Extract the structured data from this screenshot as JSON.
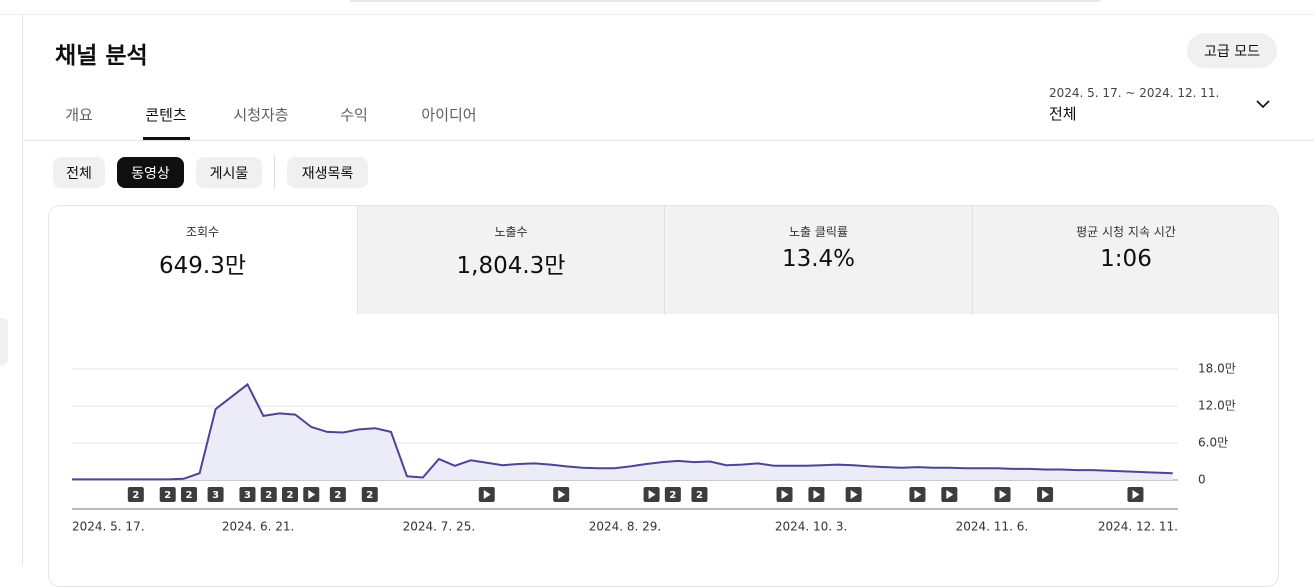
{
  "header": {
    "title": "채널 분석",
    "advanced_button": "고급 모드"
  },
  "tabs": [
    "개요",
    "콘텐츠",
    "시청자층",
    "수익",
    "아이디어"
  ],
  "active_tab": 1,
  "date_range": {
    "range": "2024. 5. 17. ~ 2024. 12. 11.",
    "period": "전체"
  },
  "filters": [
    "전체",
    "동영상",
    "게시물",
    "재생목록"
  ],
  "active_filter": 1,
  "metrics": [
    {
      "label": "조회수",
      "value": "649.3만"
    },
    {
      "label": "노출수",
      "value": "1,804.3만"
    },
    {
      "label": "노출 클릭률",
      "value": "13.4%"
    },
    {
      "label": "평균 시청 지속 시간",
      "value": "1:06"
    }
  ],
  "chart_data": {
    "type": "line",
    "color": "#4b4593",
    "fill": "#ecebf8",
    "x": [
      0,
      3,
      6,
      9,
      12,
      15,
      18,
      21,
      24,
      27,
      30,
      33,
      36,
      39,
      42,
      45,
      48,
      51,
      54,
      57,
      60,
      63,
      66,
      69,
      72,
      75,
      78,
      81,
      84,
      87,
      90,
      93,
      96,
      99,
      102,
      105,
      108,
      111,
      114,
      117,
      120,
      123,
      126,
      129,
      132,
      135,
      138,
      141,
      144,
      147,
      150,
      153,
      156,
      159,
      162,
      165,
      168,
      171,
      174,
      177,
      180,
      183,
      186,
      189,
      192,
      195,
      198,
      201,
      204,
      207
    ],
    "values": [
      0.1,
      0.1,
      0.1,
      0.1,
      0.1,
      0.1,
      0.1,
      0.2,
      1.1,
      11.5,
      13.5,
      15.5,
      10.4,
      10.8,
      10.6,
      8.6,
      7.8,
      7.7,
      8.2,
      8.4,
      7.8,
      0.6,
      0.4,
      3.4,
      2.3,
      3.2,
      2.8,
      2.4,
      2.6,
      2.7,
      2.5,
      2.2,
      2.0,
      1.9,
      1.9,
      2.2,
      2.6,
      2.9,
      3.1,
      2.9,
      3.0,
      2.4,
      2.5,
      2.7,
      2.3,
      2.3,
      2.3,
      2.4,
      2.5,
      2.4,
      2.2,
      2.1,
      2.0,
      2.1,
      2.0,
      2.0,
      1.9,
      1.9,
      1.9,
      1.8,
      1.8,
      1.7,
      1.7,
      1.6,
      1.6,
      1.5,
      1.4,
      1.3,
      1.2,
      1.1
    ],
    "xlim": [
      0,
      208
    ],
    "xticks": [
      {
        "value": 0,
        "label": "2024. 5. 17."
      },
      {
        "value": 35,
        "label": "2024. 6. 21."
      },
      {
        "value": 69,
        "label": "2024. 7. 25."
      },
      {
        "value": 104,
        "label": "2024. 8. 29."
      },
      {
        "value": 139,
        "label": "2024. 10. 3."
      },
      {
        "value": 173,
        "label": "2024. 11. 6."
      },
      {
        "value": 208,
        "label": "2024. 12. 11."
      }
    ],
    "ylim": [
      0,
      18
    ],
    "yticks": [
      0,
      {
        "value": 6,
        "label": "6.0만"
      },
      {
        "value": 12,
        "label": "12.0만"
      },
      {
        "value": 18,
        "label": "18.0만"
      }
    ],
    "grid": true,
    "markers": [
      {
        "x": 12,
        "label": "2"
      },
      {
        "x": 18,
        "label": "2"
      },
      {
        "x": 22,
        "label": "2"
      },
      {
        "x": 27,
        "label": "3"
      },
      {
        "x": 33,
        "label": "3"
      },
      {
        "x": 37,
        "label": "2"
      },
      {
        "x": 41,
        "label": "2"
      },
      {
        "x": 45
      },
      {
        "x": 50,
        "label": "2"
      },
      {
        "x": 56,
        "label": "2"
      },
      {
        "x": 78
      },
      {
        "x": 92
      },
      {
        "x": 109
      },
      {
        "x": 113,
        "label": "2"
      },
      {
        "x": 118,
        "label": "2"
      },
      {
        "x": 134
      },
      {
        "x": 140
      },
      {
        "x": 147
      },
      {
        "x": 159
      },
      {
        "x": 165
      },
      {
        "x": 175
      },
      {
        "x": 183
      },
      {
        "x": 200
      }
    ]
  }
}
